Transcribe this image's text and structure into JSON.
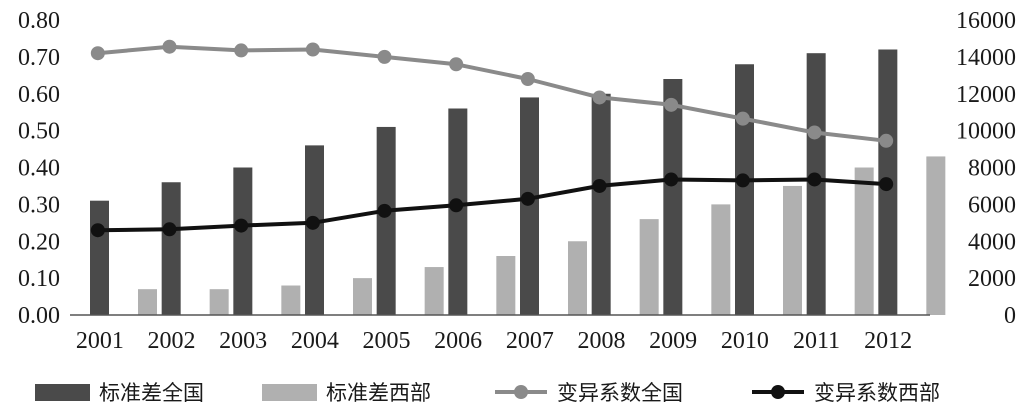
{
  "chart_data": {
    "type": "bar",
    "categories": [
      "2001",
      "2002",
      "2003",
      "2004",
      "2005",
      "2006",
      "2007",
      "2008",
      "2009",
      "2010",
      "2011",
      "2012"
    ],
    "series": [
      {
        "name": "标准差全国",
        "type": "bar",
        "axis": "left",
        "color": "#4a4a4a",
        "values": [
          0.31,
          0.36,
          0.4,
          0.46,
          0.51,
          0.56,
          0.59,
          0.6,
          0.64,
          0.68,
          0.71,
          0.72
        ]
      },
      {
        "name": "标准差西部",
        "type": "bar",
        "axis": "left",
        "color": "#b0b0b0",
        "values": [
          0.07,
          0.07,
          0.08,
          0.1,
          0.13,
          0.16,
          0.2,
          0.26,
          0.3,
          0.35,
          0.4,
          0.43
        ]
      },
      {
        "name": "变异系数全国",
        "type": "line",
        "axis": "right",
        "color": "#8a8a8a",
        "values": [
          14200,
          14550,
          14350,
          14400,
          14000,
          13600,
          12800,
          11800,
          11400,
          10650,
          9900,
          9450
        ]
      },
      {
        "name": "变异系数西部",
        "type": "line",
        "axis": "right",
        "color": "#111111",
        "values": [
          4600,
          4650,
          4850,
          5000,
          5650,
          5950,
          6300,
          7000,
          7350,
          7300,
          7350,
          7100
        ]
      }
    ],
    "y_left": {
      "ylim": [
        0,
        0.8
      ],
      "ticks": [
        "0.00",
        "0.10",
        "0.20",
        "0.30",
        "0.40",
        "0.50",
        "0.60",
        "0.70",
        "0.80"
      ]
    },
    "y_right": {
      "ylim": [
        0,
        16000
      ],
      "ticks": [
        "0",
        "2000",
        "4000",
        "6000",
        "8000",
        "10000",
        "12000",
        "14000",
        "16000"
      ]
    },
    "title": "",
    "xlabel": "",
    "ylabel": "",
    "grid": false,
    "legend": "bottom"
  }
}
